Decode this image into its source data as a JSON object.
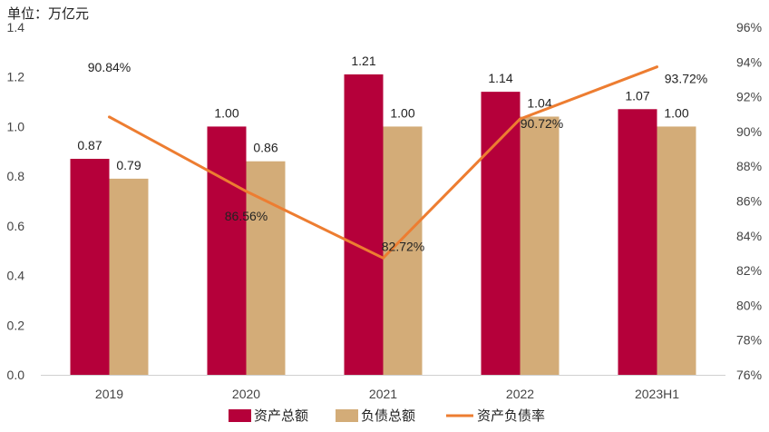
{
  "unit_label": "单位：万亿元",
  "chart_data": {
    "type": "bar",
    "categories": [
      "2019",
      "2020",
      "2021",
      "2022",
      "2023H1"
    ],
    "series": [
      {
        "name": "资产总额",
        "type": "bar",
        "axis": "left",
        "color": "#b5003a",
        "values": [
          0.87,
          1.0,
          1.21,
          1.14,
          1.07
        ],
        "labels": [
          "0.87",
          "1.00",
          "1.21",
          "1.14",
          "1.07"
        ]
      },
      {
        "name": "负债总额",
        "type": "bar",
        "axis": "left",
        "color": "#d3ac78",
        "values": [
          0.79,
          0.86,
          1.0,
          1.04,
          1.0
        ],
        "labels": [
          "0.79",
          "0.86",
          "1.00",
          "1.04",
          "1.00"
        ]
      },
      {
        "name": "资产负债率",
        "type": "line",
        "axis": "right",
        "color": "#ed7d31",
        "values": [
          90.84,
          86.56,
          82.72,
          90.72,
          93.72
        ],
        "labels": [
          "90.84%",
          "86.56%",
          "82.72%",
          "90.72%",
          "93.72%"
        ]
      }
    ],
    "y_left": {
      "min": 0,
      "max": 1.4,
      "ticks": [
        "0.0",
        "0.2",
        "0.4",
        "0.6",
        "0.8",
        "1.0",
        "1.2",
        "1.4"
      ]
    },
    "y_right": {
      "min": 76,
      "max": 96,
      "ticks": [
        "76%",
        "78%",
        "80%",
        "82%",
        "84%",
        "86%",
        "88%",
        "90%",
        "92%",
        "94%",
        "96%"
      ]
    },
    "grid": false,
    "legend_position": "bottom"
  }
}
